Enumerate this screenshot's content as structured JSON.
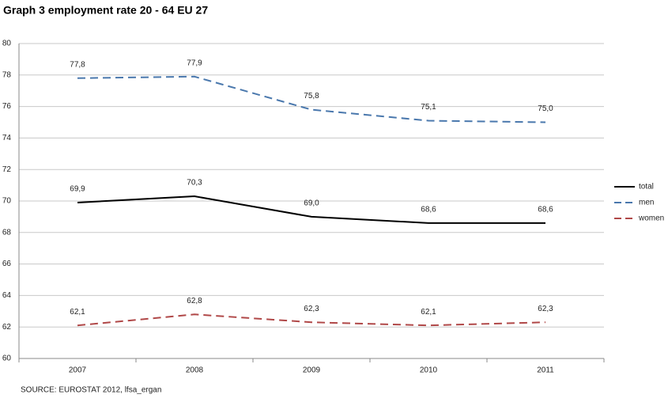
{
  "chart_data": {
    "type": "line",
    "title": "Graph 3  employment rate 20 - 64  EU 27",
    "source": "SOURCE: EUROSTAT 2012, lfsa_ergan",
    "categories": [
      "2007",
      "2008",
      "2009",
      "2010",
      "2011"
    ],
    "series": [
      {
        "name": "total",
        "color": "#000000",
        "line_style": "solid",
        "values": [
          69.9,
          70.3,
          69.0,
          68.6,
          68.6
        ],
        "value_labels": [
          "69,9",
          "70,3",
          "69,0",
          "68,6",
          "68,6"
        ]
      },
      {
        "name": "men",
        "color": "#4a78ad",
        "line_style": "dashed",
        "values": [
          77.8,
          77.9,
          75.8,
          75.1,
          75.0
        ],
        "value_labels": [
          "77,8",
          "77,9",
          "75,8",
          "75,1",
          "75,0"
        ]
      },
      {
        "name": "women",
        "color": "#b04848",
        "line_style": "dashed",
        "values": [
          62.1,
          62.8,
          62.3,
          62.1,
          62.3
        ],
        "value_labels": [
          "62,1",
          "62,8",
          "62,3",
          "62,1",
          "62,3"
        ]
      }
    ],
    "ylim": [
      60,
      80
    ],
    "yticks": [
      60,
      62,
      64,
      66,
      68,
      70,
      72,
      74,
      76,
      78,
      80
    ],
    "grid": true,
    "legend": "right"
  }
}
